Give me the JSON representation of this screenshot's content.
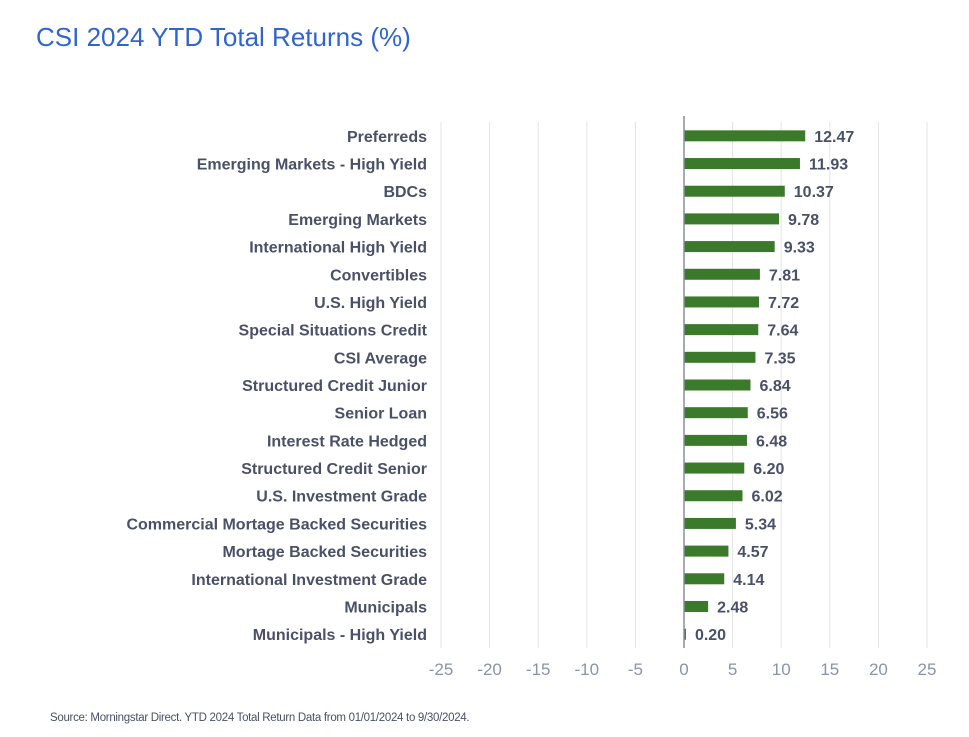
{
  "chart_data": {
    "type": "bar",
    "orientation": "horizontal",
    "title": "CSI 2024 YTD Total Returns (%)",
    "categories": [
      "Preferreds",
      "Emerging Markets - High Yield",
      "BDCs",
      "Emerging Markets",
      "International High Yield",
      "Convertibles",
      "U.S. High Yield",
      "Special Situations Credit",
      "CSI Average",
      "Structured Credit Junior",
      "Senior Loan",
      "Interest Rate Hedged",
      "Structured Credit Senior",
      "U.S. Investment Grade",
      "Commercial Mortage Backed Securities",
      "Mortage Backed Securities",
      "International Investment Grade",
      "Municipals",
      "Municipals - High Yield"
    ],
    "values": [
      12.47,
      11.93,
      10.37,
      9.78,
      9.33,
      7.81,
      7.72,
      7.64,
      7.35,
      6.84,
      6.56,
      6.48,
      6.2,
      6.02,
      5.34,
      4.57,
      4.14,
      2.48,
      0.2
    ],
    "value_labels": [
      "12.47",
      "11.93",
      "10.37",
      "9.78",
      "9.33",
      "7.81",
      "7.72",
      "7.64",
      "7.35",
      "6.84",
      "6.56",
      "6.48",
      "6.20",
      "6.02",
      "5.34",
      "4.57",
      "4.14",
      "2.48",
      "0.20"
    ],
    "xlim": [
      -25,
      25
    ],
    "xticks": [
      "-25",
      "-20",
      "-15",
      "-10",
      "-5",
      "0",
      "5",
      "10",
      "15",
      "20",
      "25"
    ],
    "grid": true,
    "bar_color": "#3a7a2a",
    "source": "Source: Morningstar Direct. YTD 2024 Total Return Data from 01/01/2024 to 9/30/2024."
  }
}
